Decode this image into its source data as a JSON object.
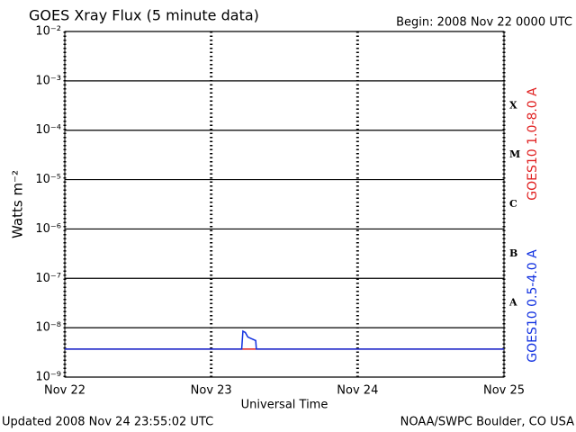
{
  "chart_data": {
    "type": "line",
    "title": "GOES Xray Flux (5 minute data)",
    "subtitle": "Begin:  2008 Nov 22 0000 UTC",
    "ylabel": "Watts m⁻²",
    "xlabel": "Universal Time",
    "log_y": true,
    "grid": true,
    "xlim": [
      0,
      72
    ],
    "xticks": [
      {
        "value": 0,
        "label": "Nov 22"
      },
      {
        "value": 24,
        "label": "Nov 23"
      },
      {
        "value": 48,
        "label": "Nov 24"
      },
      {
        "value": 72,
        "label": "Nov 25"
      }
    ],
    "ylim": [
      1e-09,
      0.01
    ],
    "yticks": [
      {
        "value": 1e-09,
        "label": "10⁻⁹"
      },
      {
        "value": 1e-08,
        "label": "10⁻⁸"
      },
      {
        "value": 1e-07,
        "label": "10⁻⁷"
      },
      {
        "value": 1e-06,
        "label": "10⁻⁶"
      },
      {
        "value": 1e-05,
        "label": "10⁻⁵"
      },
      {
        "value": 0.0001,
        "label": "10⁻⁴"
      },
      {
        "value": 0.001,
        "label": "10⁻³"
      },
      {
        "value": 0.01,
        "label": "10⁻²"
      }
    ],
    "classes": [
      "X",
      "M",
      "C",
      "B",
      "A"
    ],
    "series": [
      {
        "name": "GOES10 1.0-8.0 A",
        "color": "#e02020",
        "x": [
          0,
          72
        ],
        "values": [
          3.7e-09,
          3.7e-09
        ]
      },
      {
        "name": "GOES10 0.5-4.0 A",
        "color": "#1030e0",
        "x": [
          0,
          29.0,
          29.2,
          29.6,
          30.0,
          30.6,
          31.3,
          31.4,
          72
        ],
        "values": [
          3.7e-09,
          3.7e-09,
          8.5e-09,
          8e-09,
          6.5e-09,
          6e-09,
          5.5e-09,
          3.7e-09,
          3.7e-09
        ]
      }
    ],
    "footer_left": "Updated 2008 Nov 24 23:55:02 UTC",
    "footer_right": "NOAA/SWPC Boulder, CO USA"
  }
}
